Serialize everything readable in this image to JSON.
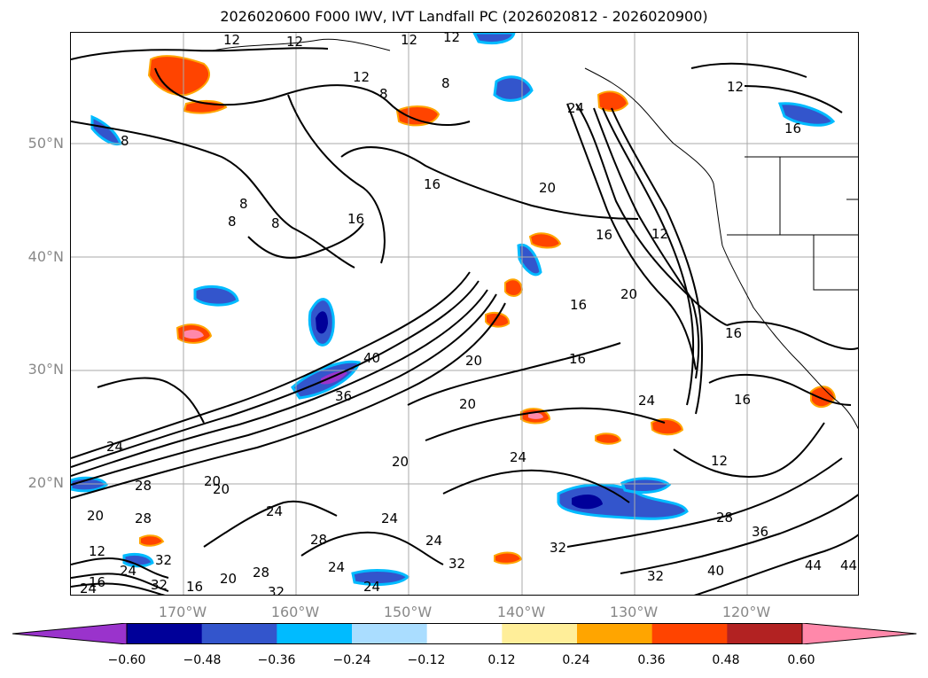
{
  "title": "2026020600 F000 IWV, IVT Landfall PC (2026020812 - 2026020900)",
  "axes": {
    "lat_labels": [
      "50°N",
      "40°N",
      "30°N",
      "20°N"
    ],
    "lon_labels": [
      "170°W",
      "160°W",
      "150°W",
      "140°W",
      "130°W",
      "120°W"
    ]
  },
  "colors": {
    "bins": [
      "#9a33cc",
      "#000099",
      "#3355cc",
      "#00bbff",
      "#aaddff",
      "#ffffff",
      "#ffee99",
      "#ffa500",
      "#ff4400",
      "#b22222",
      "#ff88aa"
    ],
    "gridline": "#aaaaaa",
    "contour": "#000000"
  },
  "colorbar": {
    "ticks": [
      "−0.60",
      "−0.48",
      "−0.36",
      "−0.24",
      "−0.12",
      "0.12",
      "0.24",
      "0.36",
      "0.48",
      "0.60"
    ]
  },
  "contour_labels": [
    "12",
    "12",
    "12",
    "8",
    "12",
    "8",
    "8",
    "12",
    "16",
    "16",
    "16",
    "20",
    "24",
    "16",
    "16",
    "12",
    "20",
    "16",
    "20",
    "24",
    "36",
    "40",
    "24",
    "28",
    "28",
    "24",
    "20",
    "20",
    "20",
    "24",
    "24",
    "28",
    "24",
    "20",
    "28",
    "32",
    "32",
    "24",
    "20",
    "24",
    "32",
    "12",
    "28",
    "36",
    "40",
    "44",
    "32",
    "16",
    "20",
    "8",
    "12",
    "8",
    "8",
    "16",
    "12",
    "24",
    "32",
    "32",
    "24",
    "16",
    "16",
    "44"
  ]
}
